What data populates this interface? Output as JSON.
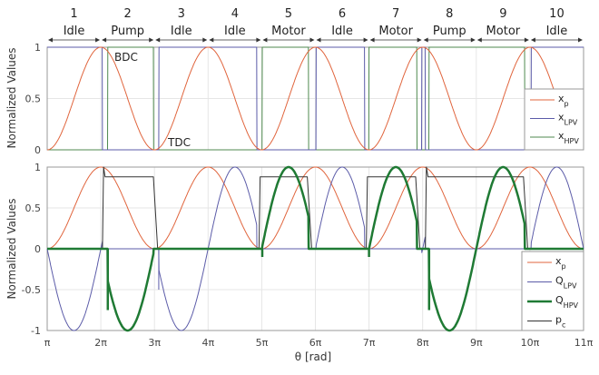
{
  "chart_data": [
    {
      "type": "line",
      "ylabel": "Normalized Values",
      "xlim_pi": [
        1,
        11
      ],
      "ylim": [
        0,
        1
      ],
      "yticks": [
        0,
        0.5,
        1
      ],
      "ytick_labels": [
        "0",
        "0.5",
        "1"
      ],
      "grid": true,
      "legend_placement": "right",
      "segments": [
        {
          "number": "1",
          "label": "Idle"
        },
        {
          "number": "2",
          "label": "Pump"
        },
        {
          "number": "3",
          "label": "Idle"
        },
        {
          "number": "4",
          "label": "Idle"
        },
        {
          "number": "5",
          "label": "Motor"
        },
        {
          "number": "6",
          "label": "Idle"
        },
        {
          "number": "7",
          "label": "Motor"
        },
        {
          "number": "8",
          "label": "Pump"
        },
        {
          "number": "9",
          "label": "Motor"
        },
        {
          "number": "10",
          "label": "Idle"
        }
      ],
      "annotations": [
        {
          "text": "BDC"
        },
        {
          "text": "TDC"
        }
      ],
      "series": [
        {
          "name": "x",
          "sub": "p",
          "color": "#e0643c",
          "kind": "piston"
        },
        {
          "name": "x",
          "sub": "LPV",
          "color": "#5b5ba8",
          "kind": "step",
          "zero_intervals_pi": [
            [
              2.03,
              3.08
            ],
            [
              4.91,
              6.01
            ],
            [
              6.92,
              7.98
            ],
            [
              8.05,
              10.02
            ]
          ]
        },
        {
          "name": "x",
          "sub": "HPV",
          "color": "#4f8a4f",
          "kind": "step_on",
          "one_intervals_pi": [
            [
              2.13,
              2.98
            ],
            [
              5.01,
              5.87
            ],
            [
              7.0,
              7.89
            ],
            [
              8.12,
              9.9
            ]
          ]
        }
      ]
    },
    {
      "type": "line",
      "ylabel": "Normalized Values",
      "xlabel": "θ [rad]",
      "xlim_pi": [
        1,
        11
      ],
      "ylim": [
        -1,
        1
      ],
      "yticks": [
        -1,
        -0.5,
        0,
        0.5,
        1
      ],
      "ytick_labels": [
        "-1",
        "-0.5",
        "0",
        "0.5",
        "1"
      ],
      "xticks_pi": [
        1,
        2,
        3,
        4,
        5,
        6,
        7,
        8,
        9,
        10,
        11
      ],
      "xtick_labels": [
        "π",
        "2π",
        "3π",
        "4π",
        "5π",
        "6π",
        "7π",
        "8π",
        "9π",
        "10π",
        "11π"
      ],
      "grid": true,
      "legend_placement": "bottom-right",
      "series": [
        {
          "name": "x",
          "sub": "p",
          "color": "#e0643c"
        },
        {
          "name": "Q",
          "sub": "LPV",
          "color": "#5b5ba8",
          "transients_pi": [
            [
              2.03,
              0.1
            ],
            [
              3.08,
              -0.5
            ]
          ]
        },
        {
          "name": "Q",
          "sub": "HPV",
          "color": "#1f7a34",
          "bold": true,
          "transients_pi": [
            [
              2.13,
              -0.75
            ],
            [
              8.12,
              -0.75
            ],
            [
              5.01,
              -0.1
            ],
            [
              7.0,
              -0.1
            ]
          ]
        },
        {
          "name": "p",
          "sub": "c",
          "color": "#333333",
          "high_level": 0.88,
          "high_intervals_pi": [
            [
              2.03,
              3.0,
              1.0
            ],
            [
              4.95,
              5.87,
              0.88
            ],
            [
              6.95,
              7.89,
              0.88
            ],
            [
              8.05,
              9.9,
              1.0
            ]
          ]
        }
      ]
    }
  ]
}
